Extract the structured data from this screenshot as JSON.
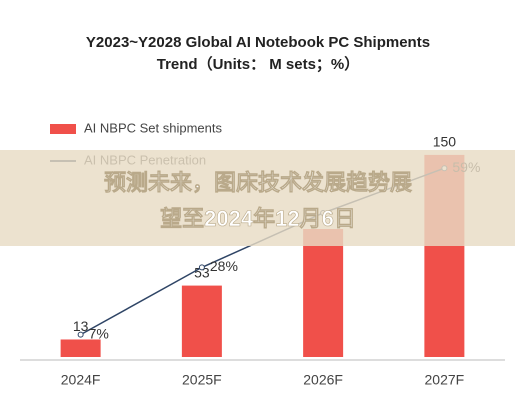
{
  "chart_data": {
    "type": "bar-line",
    "title": [
      "Y2023~Y2028 Global AI Notebook PC Shipments",
      "Trend（Units： M sets；%）"
    ],
    "categories": [
      "2024F",
      "2025F",
      "2026F",
      "2027F"
    ],
    "series": [
      {
        "name": "AI NBPC Set shipments",
        "type": "bar",
        "color": "#f0504a",
        "values": [
          13,
          53,
          95,
          150
        ],
        "value_labels": [
          "13",
          "53",
          null,
          "150"
        ]
      },
      {
        "name": "AI NBPC Penetration",
        "type": "line",
        "axis": "y2",
        "color": "#2f4566",
        "values": [
          7,
          28,
          45,
          59
        ],
        "value_labels": [
          "7%",
          "28%",
          null,
          "59%"
        ]
      }
    ],
    "ylim": [
      0,
      190
    ],
    "y2lim": [
      0,
      80
    ],
    "banner": [
      "预测未来，图床技术发展趋势展",
      "望至2024年12月6日"
    ]
  }
}
